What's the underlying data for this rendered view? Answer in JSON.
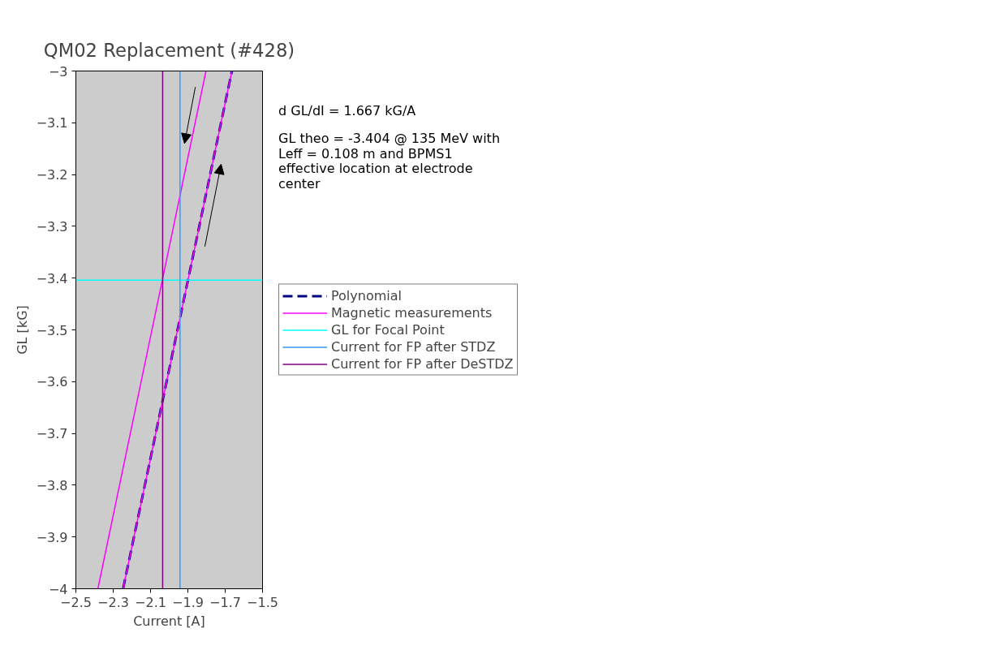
{
  "chart_data": {
    "type": "line",
    "title": "QM02 Replacement (#428)",
    "xlabel": "Current [A]",
    "ylabel": "GL [kG]",
    "series": [
      {
        "name": "Polynomial",
        "color": "#000080",
        "line_style": "dashed",
        "x": [
          -2.247,
          -1.664
        ],
        "values": [
          -4,
          -3
        ]
      },
      {
        "name": "Magnetic measurements",
        "color": "#ff00ff",
        "line_style": "solid",
        "x": [
          -2.247,
          -1.664,
          null,
          -1.803,
          -2.382
        ],
        "values": [
          -4,
          -3,
          null,
          -3,
          -4
        ]
      },
      {
        "name": "GL for Focal Point",
        "color": "#00ffff",
        "line_style": "solid",
        "x": [
          -2.5,
          -1.5
        ],
        "values": [
          -3.404,
          -3.404
        ]
      },
      {
        "name": "Current for FP after STDZ",
        "color": "#3399ff",
        "line_style": "solid",
        "x": [
          -1.942,
          -1.942
        ],
        "values": [
          -4,
          -3
        ]
      },
      {
        "name": "Current for FP after DeSTDZ",
        "color": "#800080",
        "line_style": "solid",
        "x": [
          -2.035,
          -2.035
        ],
        "values": [
          -4,
          -3
        ]
      }
    ],
    "xlim": [
      -2.5,
      -1.5
    ],
    "xticks": [
      -2.5,
      -2.3,
      -2.1,
      -1.9,
      -1.7,
      -1.5
    ],
    "ylim": [
      -4,
      -3
    ],
    "yticks": [
      -4,
      -3.9,
      -3.8,
      -3.7,
      -3.6,
      -3.5,
      -3.4,
      -3.3,
      -3.2,
      -3.1,
      -3
    ],
    "grid": false,
    "legend": "right",
    "marker": "none",
    "annotations": [
      "d GL/dI = 1.667 kG/A",
      "GL theo = -3.404 @ 135 MeV with Leff = 0.108 m and BPMS1 effective location at electrode center"
    ]
  }
}
